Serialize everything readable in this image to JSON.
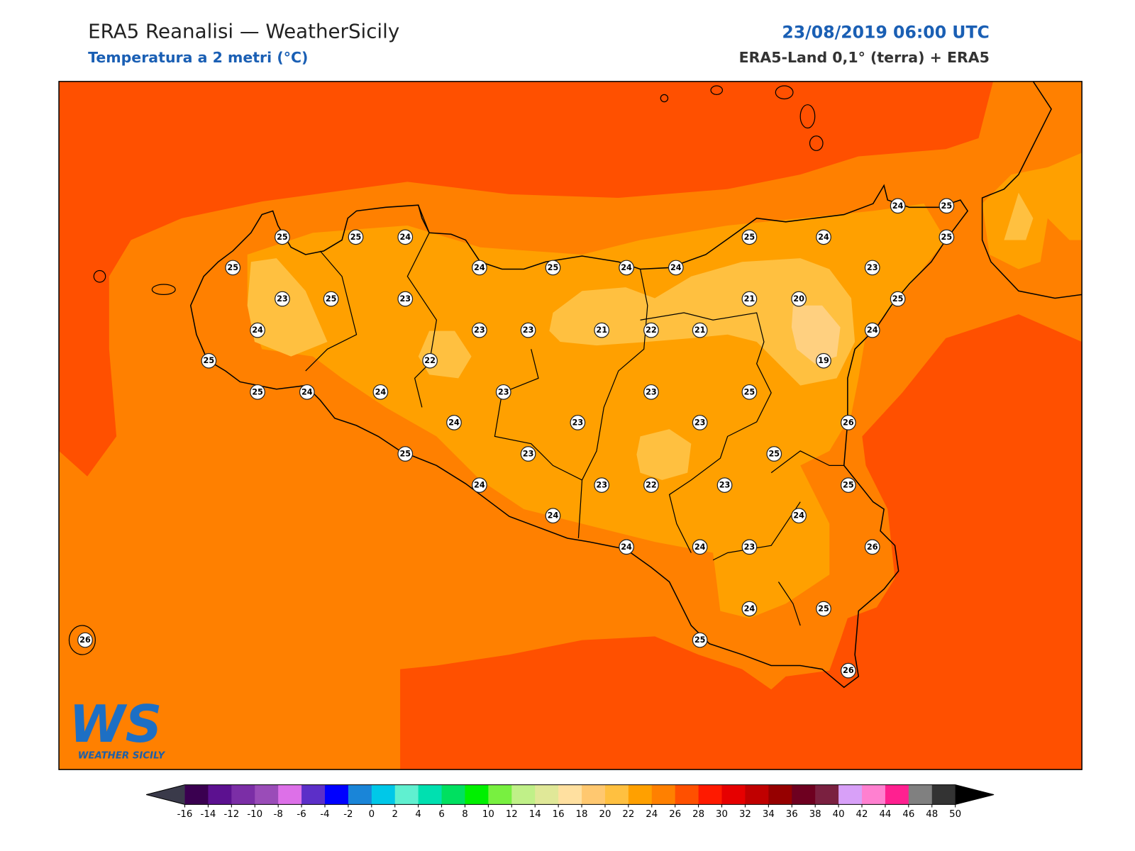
{
  "header": {
    "title": "ERA5 Reanalisi — WeatherSicily",
    "subtitle": "Temperatura a 2 metri (°C)",
    "datetime": "23/08/2019 06:00 UTC",
    "source": "ERA5-Land 0,1° (terra) + ERA5"
  },
  "stations": [
    25,
    25,
    24,
    25,
    24,
    25,
    24,
    24,
    25,
    24,
    24,
    25,
    25,
    23,
    23,
    25,
    23,
    21,
    20,
    25,
    24,
    23,
    23,
    21,
    22,
    21,
    24,
    25,
    22,
    19,
    25,
    24,
    24,
    23,
    23,
    25,
    24,
    23,
    23,
    26,
    25,
    23,
    25,
    24,
    23,
    22,
    23,
    25,
    24,
    24,
    24,
    24,
    23,
    26,
    24,
    25,
    25,
    26,
    26
  ],
  "colorbar": {
    "ticks": [
      -16,
      -14,
      -12,
      -10,
      -8,
      -6,
      -4,
      -2,
      0,
      2,
      4,
      6,
      8,
      10,
      12,
      14,
      16,
      18,
      20,
      22,
      24,
      26,
      28,
      30,
      32,
      34,
      36,
      38,
      40,
      42,
      44,
      46,
      48,
      50
    ],
    "colors": [
      "#3a0050",
      "#5c1190",
      "#7b2ea6",
      "#9a4cb8",
      "#dd70e8",
      "#5c2fc8",
      "#0000ff",
      "#1a85d8",
      "#00c8e8",
      "#60f0d0",
      "#00e0b0",
      "#00e060",
      "#00f000",
      "#78f040",
      "#c0f088",
      "#e0e898",
      "#ffe0a0",
      "#ffc870",
      "#ffc040",
      "#ffa000",
      "#ff8000",
      "#ff5000",
      "#ff1a00",
      "#e60000",
      "#c00000",
      "#960000",
      "#6e0020",
      "#7a2040",
      "#d8a0f8",
      "#ff80d0",
      "#ff2090",
      "#808080",
      "#333333"
    ],
    "under_color": "#3a3a4a",
    "over_color": "#000000"
  },
  "logo": {
    "mark": "WS",
    "caption": "WEATHER SICILY"
  }
}
